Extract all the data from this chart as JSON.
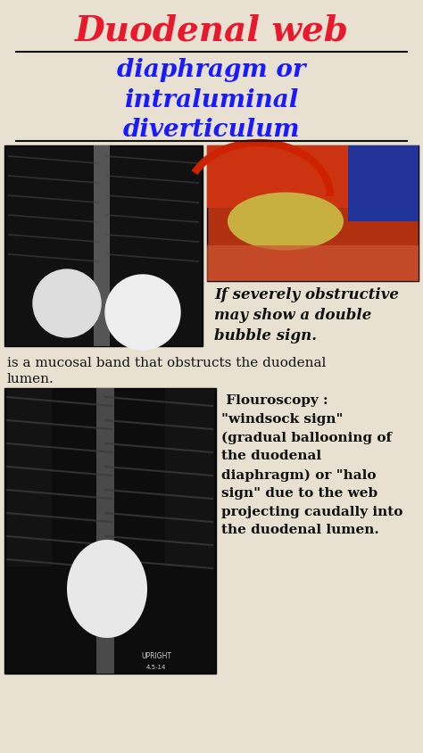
{
  "bg_color": "#e8e0d0",
  "title": "Duodenal web",
  "title_color": "#e8192c",
  "title_fontsize": 28,
  "subtitle": "diaphragm or\nintraluminal\ndiverticulum",
  "subtitle_color": "#1a1aff",
  "subtitle_fontsize": 20,
  "line_color": "#111111",
  "text1": "If severely obstructive\nmay show a double\nbubble sign.",
  "text1_fontsize": 12,
  "text1_color": "#111111",
  "text2": "is a mucosal band that obstructs the duodenal\nlumen.",
  "text2_fontsize": 11,
  "text2_color": "#111111",
  "text3": " Flouroscopy :\n\"windsock sign\"\n(gradual ballooning of\nthe duodenal\ndiaphragm) or \"halo\nsign\" due to the web\nprojecting caudally into\nthe duodenal lumen.",
  "text3_fontsize": 11,
  "text3_color": "#111111"
}
